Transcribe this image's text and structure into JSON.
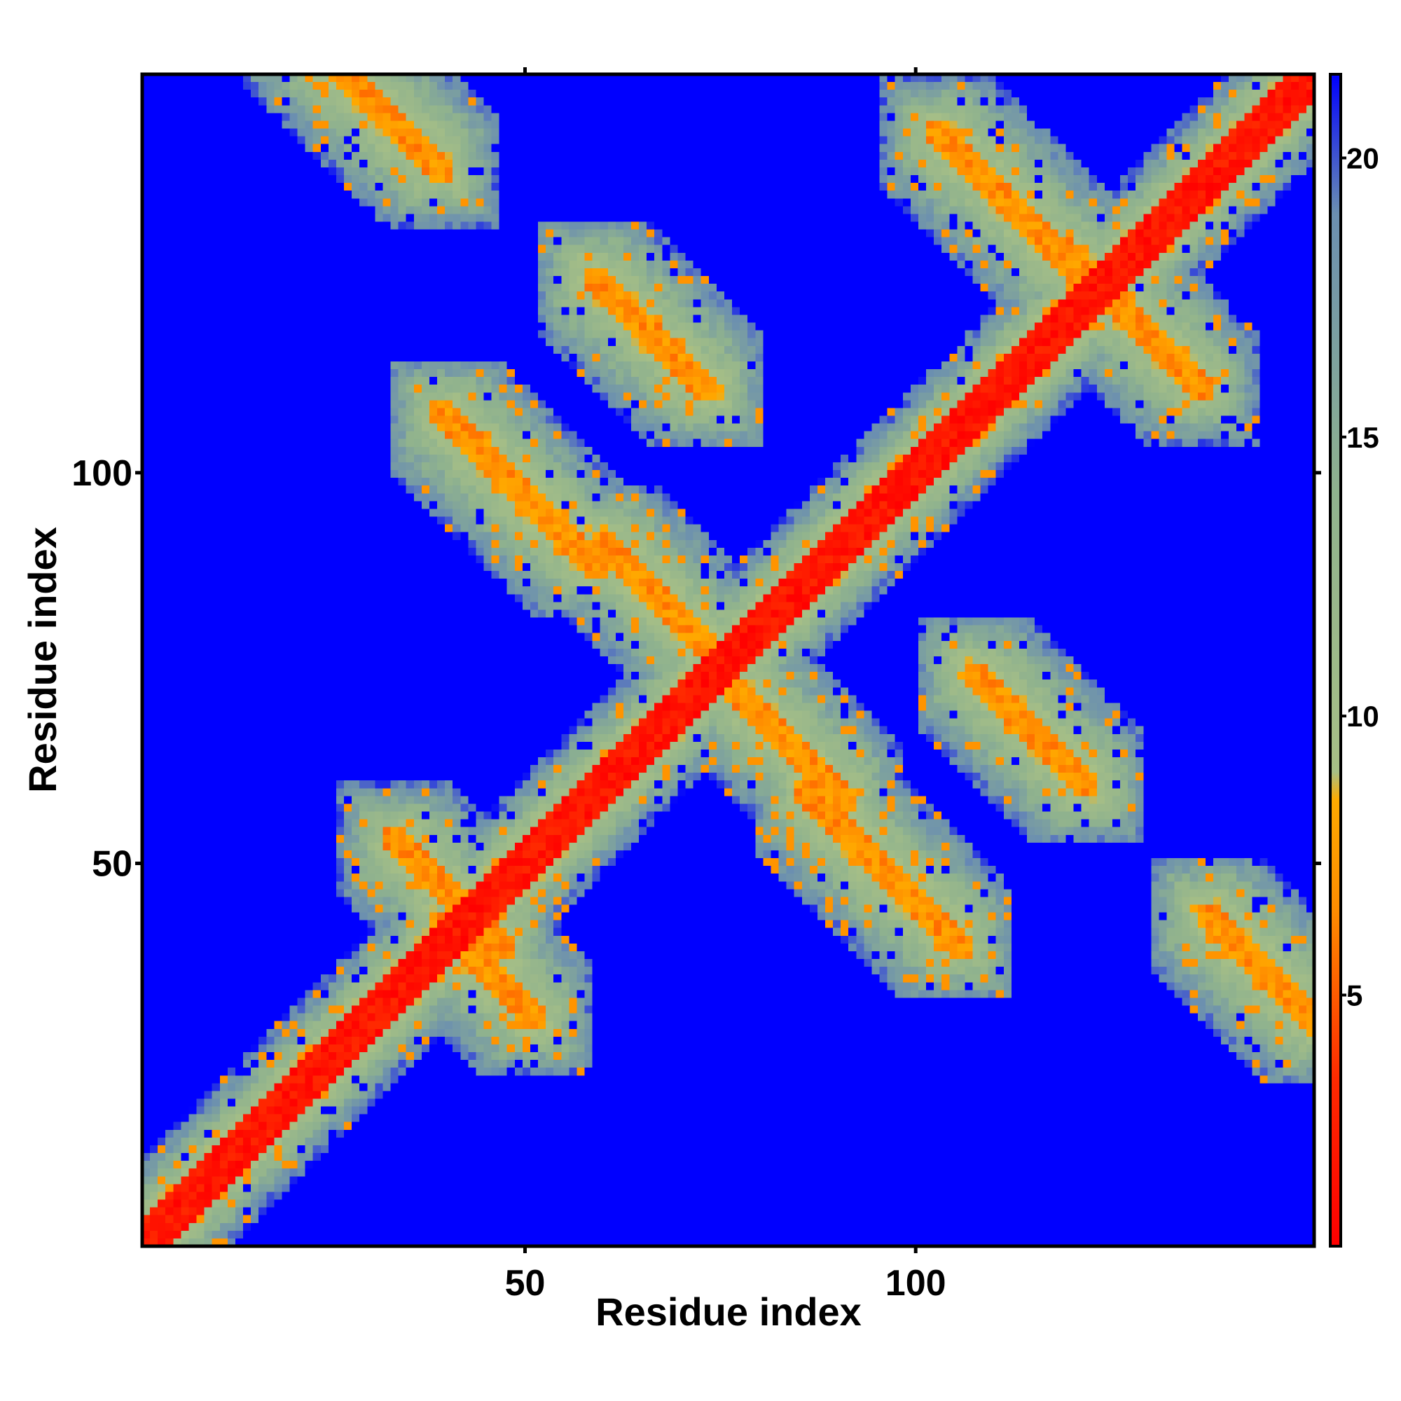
{
  "chart_data": {
    "type": "heatmap",
    "title": "",
    "xlabel": "Residue index",
    "ylabel": "Residue index",
    "n_residues": 151,
    "xlim": [
      1,
      151
    ],
    "ylim": [
      1,
      151
    ],
    "x_ticks": [
      50,
      100
    ],
    "y_ticks": [
      50,
      100
    ],
    "colorbar": {
      "range": [
        0.5,
        21.5
      ],
      "ticks": [
        5,
        10,
        15,
        20
      ],
      "stops": [
        {
          "value": 0.5,
          "color": "#ff0000"
        },
        {
          "value": 3.5,
          "color": "#ff2a00"
        },
        {
          "value": 6.5,
          "color": "#ff8c00"
        },
        {
          "value": 8.5,
          "color": "#ffaa00"
        },
        {
          "value": 9.0,
          "color": "#a7bf86"
        },
        {
          "value": 14.0,
          "color": "#8fb28e"
        },
        {
          "value": 19.0,
          "color": "#6b8fb0"
        },
        {
          "value": 21.5,
          "color": "#0000ff"
        }
      ]
    },
    "background_value": 21.5,
    "diagonal": {
      "width_residues": 2.2,
      "value": 2
    },
    "contact_bands": [
      {
        "label": "antidiagonal",
        "center_x": 30,
        "center_y": 148,
        "length": 26,
        "value": 7
      },
      {
        "label": "antidiagonal",
        "center_x": 40,
        "center_y": 46,
        "length": 20,
        "value": 7
      },
      {
        "label": "antidiagonal",
        "center_x": 45,
        "center_y": 36,
        "length": 18,
        "value": 7
      },
      {
        "label": "antidiagonal",
        "center_x": 49,
        "center_y": 98,
        "length": 28,
        "value": 7
      },
      {
        "label": "antidiagonal",
        "center_x": 66,
        "center_y": 118,
        "length": 22,
        "value": 7
      },
      {
        "label": "antidiagonal",
        "center_x": 67,
        "center_y": 84,
        "length": 22,
        "value": 7
      },
      {
        "label": "antidiagonal",
        "center_x": 84,
        "center_y": 65,
        "length": 20,
        "value": 7
      },
      {
        "label": "antidiagonal",
        "center_x": 96,
        "center_y": 49,
        "length": 28,
        "value": 7
      },
      {
        "label": "antidiagonal",
        "center_x": 112,
        "center_y": 135,
        "length": 26,
        "value": 7
      },
      {
        "label": "antidiagonal",
        "center_x": 115,
        "center_y": 67,
        "length": 22,
        "value": 7
      },
      {
        "label": "antidiagonal",
        "center_x": 128,
        "center_y": 120,
        "length": 26,
        "value": 7
      },
      {
        "label": "antidiagonal",
        "center_x": 145,
        "center_y": 36,
        "length": 22,
        "value": 7
      }
    ],
    "grid": false,
    "legend": "colorbar-right"
  }
}
